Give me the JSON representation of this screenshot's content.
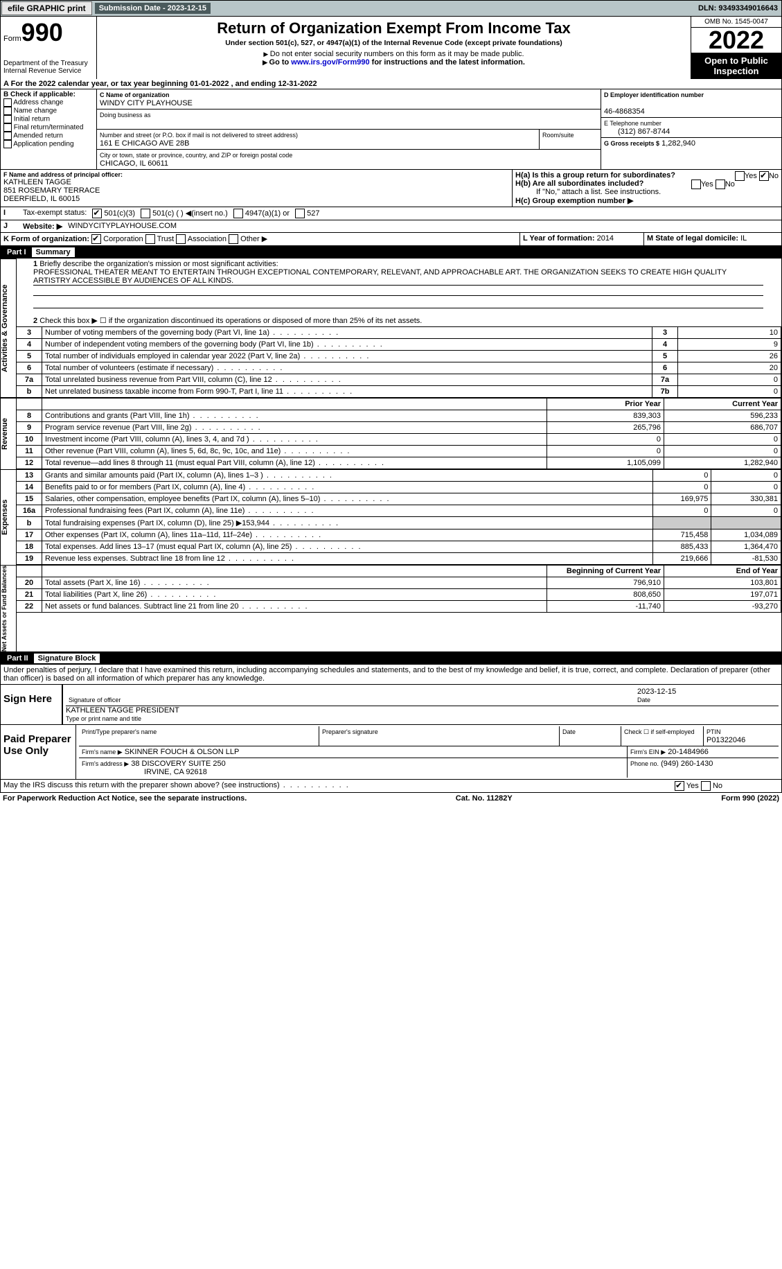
{
  "topbar": {
    "efile": "efile GRAPHIC print",
    "submission": "Submission Date - 2023-12-15",
    "dln": "DLN: 93493349016643"
  },
  "header": {
    "form_word": "Form",
    "form_no": "990",
    "dept": "Department of the Treasury\nInternal Revenue Service",
    "title": "Return of Organization Exempt From Income Tax",
    "subtitle": "Under section 501(c), 527, or 4947(a)(1) of the Internal Revenue Code (except private foundations)",
    "warn1": "Do not enter social security numbers on this form as it may be made public.",
    "warn2_pre": "Go to ",
    "warn2_link": "www.irs.gov/Form990",
    "warn2_post": " for instructions and the latest information.",
    "omb": "OMB No. 1545-0047",
    "year": "2022",
    "open": "Open to Public Inspection"
  },
  "period": {
    "text": "For the 2022 calendar year, or tax year beginning 01-01-2022     , and ending 12-31-2022"
  },
  "blockB": {
    "label": "B Check if applicable:",
    "items": [
      "Address change",
      "Name change",
      "Initial return",
      "Final return/terminated",
      "Amended return",
      "Application pending"
    ]
  },
  "blockC": {
    "name_lbl": "C Name of organization",
    "name": "WINDY CITY PLAYHOUSE",
    "dba_lbl": "Doing business as",
    "dba": "",
    "addr_lbl": "Number and street (or P.O. box if mail is not delivered to street address)",
    "room_lbl": "Room/suite",
    "addr": "161 E CHICAGO AVE 28B",
    "city_lbl": "City or town, state or province, country, and ZIP or foreign postal code",
    "city": "CHICAGO, IL  60611"
  },
  "blockD": {
    "lbl": "D Employer identification number",
    "val": "46-4868354"
  },
  "blockE": {
    "lbl": "E Telephone number",
    "val": "(312) 867-8744"
  },
  "blockG": {
    "lbl": "G Gross receipts $",
    "val": "1,282,940"
  },
  "blockF": {
    "lbl": "F Name and address of principal officer:",
    "name": "KATHLEEN TAGGE",
    "addr1": "851 ROSEMARY TERRACE",
    "addr2": "DEERFIELD, IL  60015"
  },
  "blockH": {
    "a": "H(a)  Is this a group return for subordinates?",
    "b": "H(b)  Are all subordinates included?",
    "b_note": "If \"No,\" attach a list. See instructions.",
    "c": "H(c)  Group exemption number ▶",
    "yes": "Yes",
    "no": "No"
  },
  "blockI": {
    "lbl": "Tax-exempt status:",
    "o1": "501(c)(3)",
    "o2": "501(c) (  ) ◀(insert no.)",
    "o3": "4947(a)(1) or",
    "o4": "527"
  },
  "blockJ": {
    "lbl": "Website: ▶",
    "val": "WINDYCITYPLAYHOUSE.COM"
  },
  "blockK": {
    "lbl": "K Form of organization:",
    "o1": "Corporation",
    "o2": "Trust",
    "o3": "Association",
    "o4": "Other ▶"
  },
  "blockL": {
    "lbl": "L Year of formation:",
    "val": "2014"
  },
  "blockM": {
    "lbl": "M State of legal domicile:",
    "val": "IL"
  },
  "part1": {
    "num": "Part I",
    "title": "Summary"
  },
  "summary": {
    "l1_lbl": "Briefly describe the organization's mission or most significant activities:",
    "l1_val": "PROFESSIONAL THEATER MEANT TO ENTERTAIN THROUGH EXCEPTIONAL CONTEMPORARY, RELEVANT, AND APPROACHABLE ART. THE ORGANIZATION SEEKS TO CREATE HIGH QUALITY ARTISTRY ACCESSIBLE BY AUDIENCES OF ALL KINDS.",
    "l2": "Check this box ▶ ☐  if the organization discontinued its operations or disposed of more than 25% of its net assets.",
    "rows_simple": [
      {
        "n": "3",
        "t": "Number of voting members of the governing body (Part VI, line 1a)",
        "box": "3",
        "v": "10"
      },
      {
        "n": "4",
        "t": "Number of independent voting members of the governing body (Part VI, line 1b)",
        "box": "4",
        "v": "9"
      },
      {
        "n": "5",
        "t": "Total number of individuals employed in calendar year 2022 (Part V, line 2a)",
        "box": "5",
        "v": "26"
      },
      {
        "n": "6",
        "t": "Total number of volunteers (estimate if necessary)",
        "box": "6",
        "v": "20"
      },
      {
        "n": "7a",
        "t": "Total unrelated business revenue from Part VIII, column (C), line 12",
        "box": "7a",
        "v": "0"
      },
      {
        "n": "b",
        "t": "Net unrelated business taxable income from Form 990-T, Part I, line 11",
        "box": "7b",
        "v": "0"
      }
    ],
    "col_prior": "Prior Year",
    "col_curr": "Current Year",
    "revenue": [
      {
        "n": "8",
        "t": "Contributions and grants (Part VIII, line 1h)",
        "p": "839,303",
        "c": "596,233"
      },
      {
        "n": "9",
        "t": "Program service revenue (Part VIII, line 2g)",
        "p": "265,796",
        "c": "686,707"
      },
      {
        "n": "10",
        "t": "Investment income (Part VIII, column (A), lines 3, 4, and 7d )",
        "p": "0",
        "c": "0"
      },
      {
        "n": "11",
        "t": "Other revenue (Part VIII, column (A), lines 5, 6d, 8c, 9c, 10c, and 11e)",
        "p": "0",
        "c": "0"
      },
      {
        "n": "12",
        "t": "Total revenue—add lines 8 through 11 (must equal Part VIII, column (A), line 12)",
        "p": "1,105,099",
        "c": "1,282,940"
      }
    ],
    "expenses": [
      {
        "n": "13",
        "t": "Grants and similar amounts paid (Part IX, column (A), lines 1–3 )",
        "p": "0",
        "c": "0"
      },
      {
        "n": "14",
        "t": "Benefits paid to or for members (Part IX, column (A), line 4)",
        "p": "0",
        "c": "0"
      },
      {
        "n": "15",
        "t": "Salaries, other compensation, employee benefits (Part IX, column (A), lines 5–10)",
        "p": "169,975",
        "c": "330,381"
      },
      {
        "n": "16a",
        "t": "Professional fundraising fees (Part IX, column (A), line 11e)",
        "p": "0",
        "c": "0"
      },
      {
        "n": "b",
        "t": "Total fundraising expenses (Part IX, column (D), line 25) ▶153,944",
        "p": "__sh__",
        "c": "__sh__"
      },
      {
        "n": "17",
        "t": "Other expenses (Part IX, column (A), lines 11a–11d, 11f–24e)",
        "p": "715,458",
        "c": "1,034,089"
      },
      {
        "n": "18",
        "t": "Total expenses. Add lines 13–17 (must equal Part IX, column (A), line 25)",
        "p": "885,433",
        "c": "1,364,470"
      },
      {
        "n": "19",
        "t": "Revenue less expenses. Subtract line 18 from line 12",
        "p": "219,666",
        "c": "-81,530"
      }
    ],
    "col_beg": "Beginning of Current Year",
    "col_end": "End of Year",
    "netassets": [
      {
        "n": "20",
        "t": "Total assets (Part X, line 16)",
        "p": "796,910",
        "c": "103,801"
      },
      {
        "n": "21",
        "t": "Total liabilities (Part X, line 26)",
        "p": "808,650",
        "c": "197,071"
      },
      {
        "n": "22",
        "t": "Net assets or fund balances. Subtract line 21 from line 20",
        "p": "-11,740",
        "c": "-93,270"
      }
    ],
    "tabs": {
      "ag": "Activities & Governance",
      "rev": "Revenue",
      "exp": "Expenses",
      "na": "Net Assets or\nFund Balances"
    }
  },
  "part2": {
    "num": "Part II",
    "title": "Signature Block"
  },
  "sig": {
    "decl": "Under penalties of perjury, I declare that I have examined this return, including accompanying schedules and statements, and to the best of my knowledge and belief, it is true, correct, and complete. Declaration of preparer (other than officer) is based on all information of which preparer has any knowledge.",
    "sign_here": "Sign Here",
    "sig_officer": "Signature of officer",
    "date_lbl": "Date",
    "date": "2023-12-15",
    "name": "KATHLEEN TAGGE  PRESIDENT",
    "name_lbl": "Type or print name and title",
    "paid": "Paid Preparer Use Only",
    "p_name": "Print/Type preparer's name",
    "p_sig": "Preparer's signature",
    "p_check": "Check ☐ if self-employed",
    "ptin_lbl": "PTIN",
    "ptin": "P01322046",
    "firm_lbl": "Firm's name      ▶",
    "firm": "SKINNER FOUCH & OLSON LLP",
    "ein_lbl": "Firm's EIN ▶",
    "ein": "20-1484966",
    "addr_lbl": "Firm's address ▶",
    "addr1": "38 DISCOVERY SUITE 250",
    "addr2": "IRVINE, CA  92618",
    "phone_lbl": "Phone no.",
    "phone": "(949) 260-1430",
    "discuss": "May the IRS discuss this return with the preparer shown above? (see instructions)"
  },
  "footer": {
    "l": "For Paperwork Reduction Act Notice, see the separate instructions.",
    "c": "Cat. No. 11282Y",
    "r": "Form 990 (2022)"
  }
}
